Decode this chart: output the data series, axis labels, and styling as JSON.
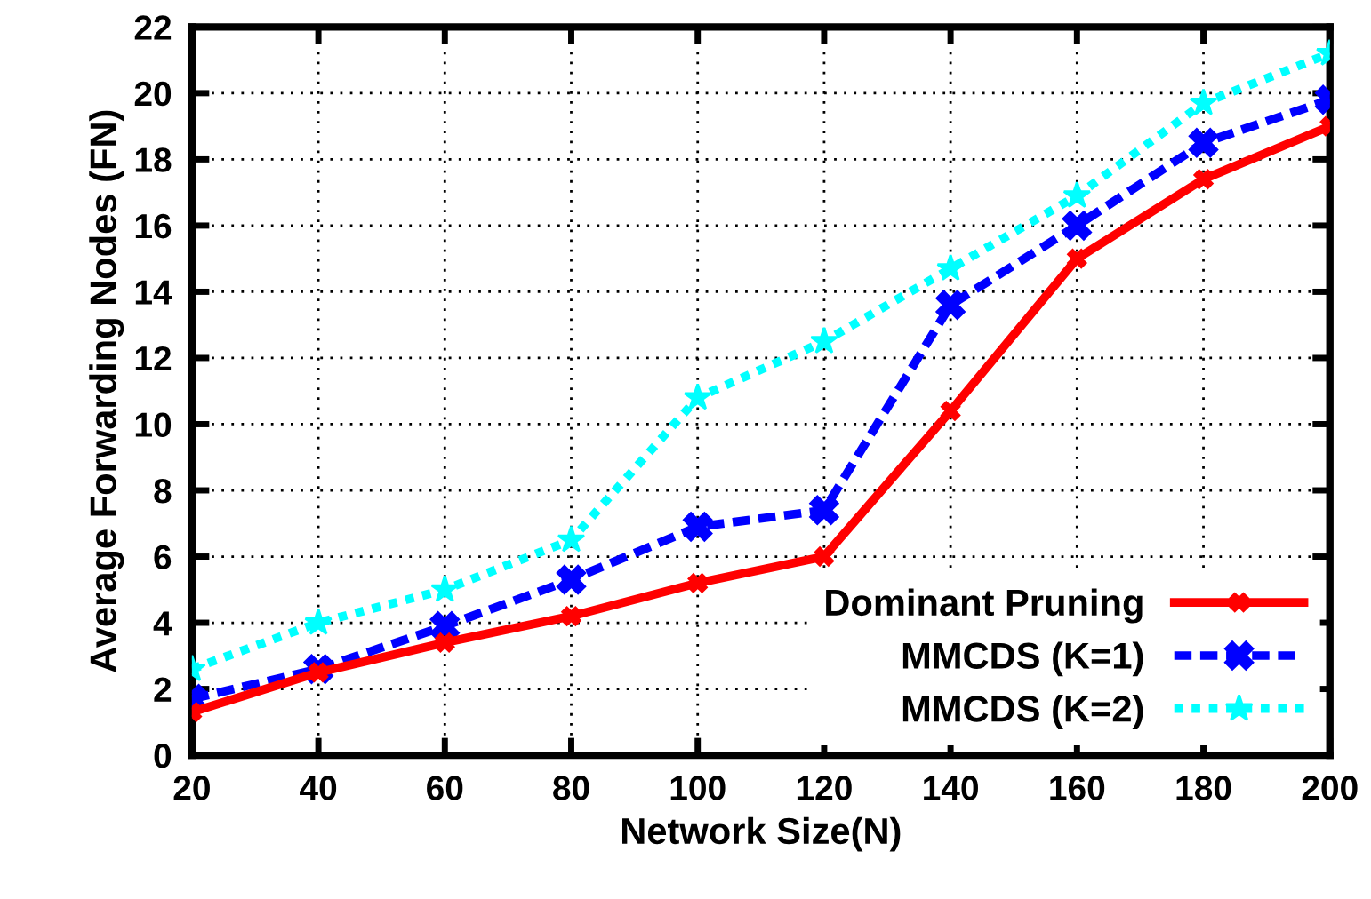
{
  "chart_data": {
    "type": "line",
    "xlabel": "Network Size(N)",
    "ylabel": "Average Forwarding Nodes (FN)",
    "x": [
      20,
      40,
      60,
      80,
      100,
      120,
      140,
      160,
      180,
      200
    ],
    "xlim": [
      20,
      200
    ],
    "xticks": [
      20,
      40,
      60,
      80,
      100,
      120,
      140,
      160,
      180,
      200
    ],
    "ylim": [
      0,
      22
    ],
    "yticks": [
      0,
      2,
      4,
      6,
      8,
      10,
      12,
      14,
      16,
      18,
      20,
      22
    ],
    "grid": true,
    "legend": "bottom right",
    "series": [
      {
        "name": "Dominant Pruning",
        "color": "#ff0000",
        "line_style": "solid",
        "marker": "cross",
        "values": [
          1.3,
          2.5,
          3.4,
          4.2,
          5.2,
          6.0,
          10.4,
          15.0,
          17.4,
          19.0
        ]
      },
      {
        "name": "MMCDS (K=1)",
        "color": "#0000ff",
        "line_style": "dashed",
        "marker": "cross",
        "values": [
          1.7,
          2.6,
          3.9,
          5.3,
          6.9,
          7.4,
          13.6,
          16.0,
          18.5,
          19.8
        ]
      },
      {
        "name": "MMCDS (K=2)",
        "color": "#00ffff",
        "line_style": "dotted",
        "marker": "star",
        "values": [
          2.6,
          4.0,
          5.0,
          6.5,
          10.8,
          12.5,
          14.7,
          16.9,
          19.7,
          21.2
        ]
      }
    ]
  }
}
